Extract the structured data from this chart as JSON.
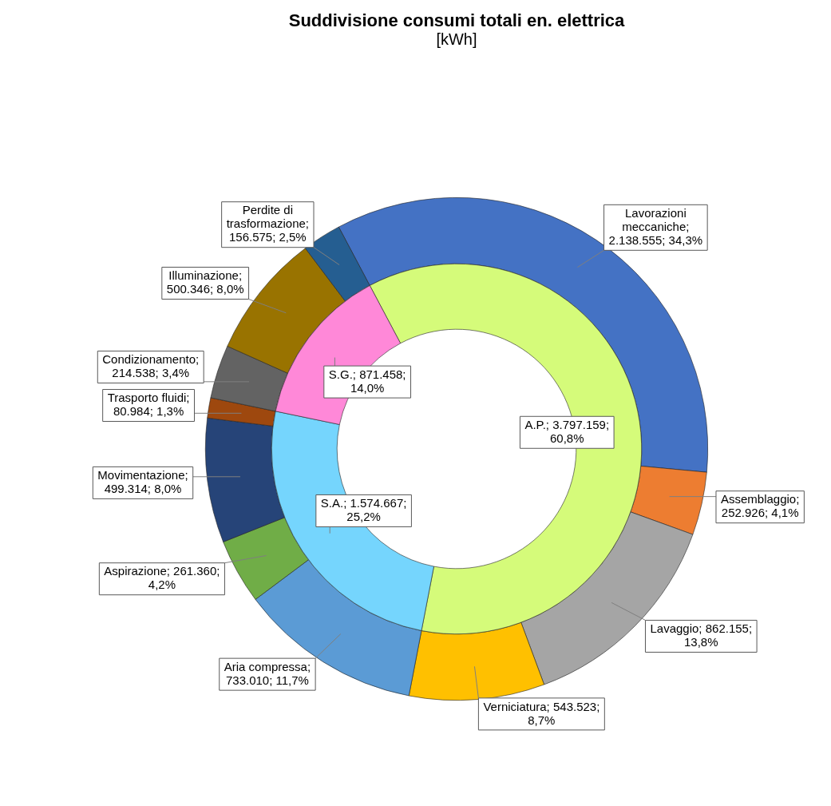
{
  "chart_data": [
    {
      "type": "donut",
      "title": "Suddivisione consumi totali en. elettrica",
      "subtitle": "[kWh]",
      "legend": false,
      "categories": [
        "Lavorazioni meccaniche",
        "Assemblaggio",
        "Lavaggio",
        "Verniciatura",
        "Aria compressa",
        "Aspirazione",
        "Movimentazione",
        "Trasporto fluidi",
        "Condizionamento",
        "Illuminazione",
        "Perdite di trasformazione"
      ],
      "values": [
        2138555,
        252926,
        862155,
        543523,
        733010,
        261360,
        499314,
        80984,
        214538,
        500346,
        156575
      ],
      "colors": [
        "#4472c4",
        "#ed7d31",
        "#a5a5a5",
        "#ffc000",
        "#5b9bd5",
        "#70ad47",
        "#264478",
        "#9e480e",
        "#636363",
        "#997300",
        "#255e91"
      ],
      "value_labels": [
        "; 2.138.555; 34,3%",
        "; 252.926; 4,1%",
        "; 862.155; 13,8%",
        "; 543.523; 8,7%",
        "; 733.010; 11,7%",
        "; 261.360; 4,2%",
        "; 499.314; 8,0%",
        "; 80.984; 1,3%",
        "; 214.538; 3,4%",
        "; 500.346; 8,0%",
        "; 156.575; 2,5%"
      ]
    },
    {
      "type": "donut",
      "legend": false,
      "categories": [
        "A.P.",
        "S.A.",
        "S.G."
      ],
      "values": [
        3797159,
        1574667,
        871458
      ],
      "colors": [
        "#d5fb7a",
        "#75d5fd",
        "#ff88d8"
      ],
      "value_labels": [
        "; 3.797.159; 60,8%",
        "; 1.574.667; 25,2%",
        "; 871.458; 14,0%"
      ]
    }
  ]
}
